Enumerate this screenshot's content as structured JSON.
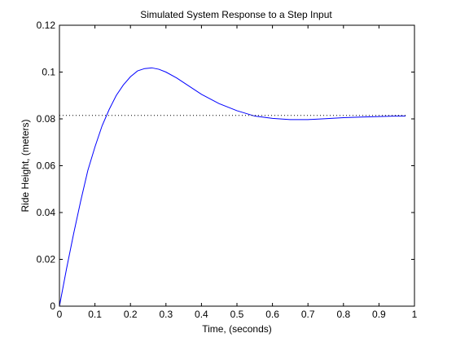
{
  "chart_data": {
    "type": "line",
    "title": "Simulated System Response to a Step Input",
    "xlabel": "Time, (seconds)",
    "ylabel": "Ride Height, (meters)",
    "xlim": [
      0,
      1
    ],
    "ylim": [
      0,
      0.12
    ],
    "grid": false,
    "x_ticks": [
      0,
      0.1,
      0.2,
      0.3,
      0.4,
      0.5,
      0.6,
      0.7,
      0.8,
      0.9,
      1
    ],
    "x_tick_labels": [
      "0",
      "0.1",
      "0.2",
      "0.3",
      "0.4",
      "0.5",
      "0.6",
      "0.7",
      "0.8",
      "0.9",
      "1"
    ],
    "y_ticks": [
      0,
      0.02,
      0.04,
      0.06,
      0.08,
      0.1,
      0.12
    ],
    "y_tick_labels": [
      "0",
      "0.02",
      "0.04",
      "0.06",
      "0.08",
      "0.1",
      "0.12"
    ],
    "series": [
      {
        "color": "#0000ff",
        "style": "solid",
        "x": [
          0,
          0.02,
          0.04,
          0.06,
          0.08,
          0.1,
          0.12,
          0.14,
          0.16,
          0.18,
          0.2,
          0.22,
          0.24,
          0.26,
          0.28,
          0.3,
          0.33,
          0.36,
          0.4,
          0.45,
          0.5,
          0.55,
          0.6,
          0.65,
          0.7,
          0.75,
          0.8,
          0.85,
          0.9,
          0.95,
          0.975
        ],
        "values": [
          0,
          0.016,
          0.031,
          0.045,
          0.058,
          0.068,
          0.077,
          0.084,
          0.09,
          0.0945,
          0.098,
          0.1005,
          0.1015,
          0.1018,
          0.1012,
          0.1,
          0.0975,
          0.0945,
          0.0905,
          0.0865,
          0.0835,
          0.0812,
          0.0802,
          0.0797,
          0.0797,
          0.0801,
          0.0805,
          0.0808,
          0.081,
          0.0812,
          0.0812
        ]
      },
      {
        "color": "#000000",
        "style": "dotted",
        "x": [
          0,
          0.98
        ],
        "values": [
          0.0815,
          0.0815
        ]
      }
    ]
  }
}
